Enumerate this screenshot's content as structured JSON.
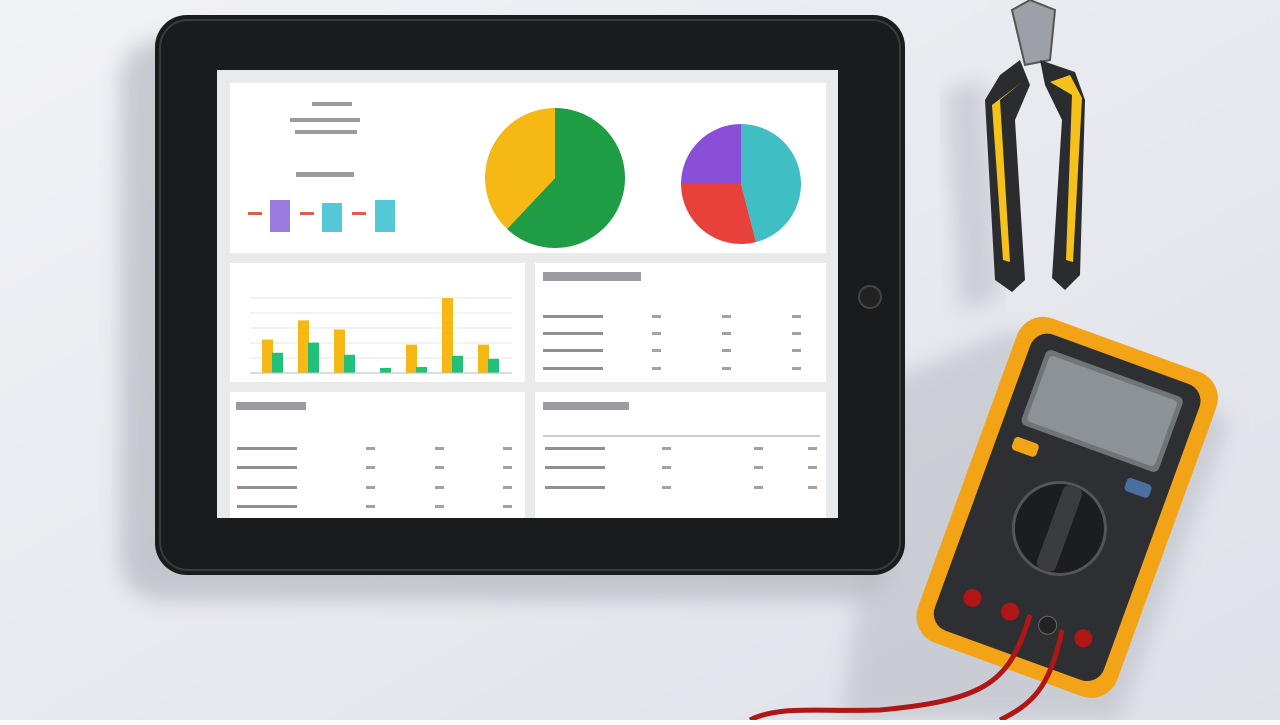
{
  "dashboard": {
    "pie_left": {
      "values": [
        62,
        38
      ],
      "colors": [
        "#1f9d45",
        "#f5b814"
      ]
    },
    "pie_right": {
      "values": [
        46,
        29,
        25
      ],
      "colors": [
        "#3fbfc4",
        "#e8403a",
        "#8a4fd9"
      ]
    },
    "bar_chart": {
      "ylim": [
        0,
        80
      ],
      "series": [
        {
          "color": "#f5b814",
          "values": [
            33,
            52,
            43,
            0,
            28,
            74,
            28
          ]
        },
        {
          "color": "#22c07a",
          "values": [
            20,
            30,
            18,
            5,
            6,
            17,
            14
          ]
        }
      ]
    }
  }
}
